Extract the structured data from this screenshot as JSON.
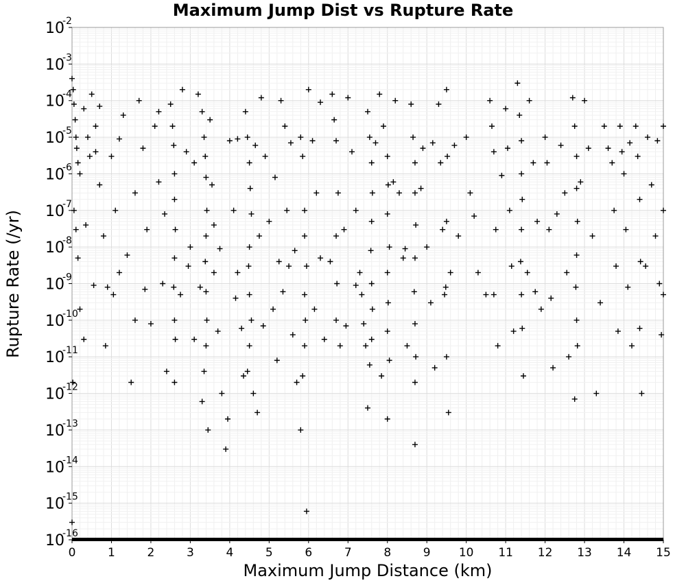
{
  "chart_data": {
    "type": "scatter",
    "title": "Maximum Jump Dist vs Rupture Rate",
    "xlabel": "Maximum Jump Distance (km)",
    "ylabel": "Rupture Rate (/yr)",
    "xlim": [
      0,
      15
    ],
    "ylim": [
      1e-16,
      0.01
    ],
    "yscale": "log",
    "grid": true,
    "marker": "plus",
    "marker_color": "#000000",
    "x_ticks": [
      "0",
      "1",
      "2",
      "3",
      "4",
      "5",
      "6",
      "7",
      "8",
      "9",
      "10",
      "11",
      "12",
      "13",
      "14",
      "15"
    ],
    "y_ticks": [
      {
        "base": "10",
        "exp": "-2"
      },
      {
        "base": "10",
        "exp": "-3"
      },
      {
        "base": "10",
        "exp": "-4"
      },
      {
        "base": "10",
        "exp": "-5"
      },
      {
        "base": "10",
        "exp": "-6"
      },
      {
        "base": "10",
        "exp": "-7"
      },
      {
        "base": "10",
        "exp": "-8"
      },
      {
        "base": "10",
        "exp": "-9"
      },
      {
        "base": "10",
        "exp": "-10"
      },
      {
        "base": "10",
        "exp": "-11"
      },
      {
        "base": "10",
        "exp": "-12"
      },
      {
        "base": "10",
        "exp": "-13"
      },
      {
        "base": "10",
        "exp": "-14"
      },
      {
        "base": "10",
        "exp": "-15"
      },
      {
        "base": "10",
        "exp": "-16"
      }
    ],
    "points": [
      [
        0.0,
        0.0004
      ],
      [
        0.03,
        0.0002
      ],
      [
        0.05,
        8e-05
      ],
      [
        0.08,
        3e-05
      ],
      [
        0.1,
        1e-05
      ],
      [
        0.12,
        5e-06
      ],
      [
        0.15,
        2e-06
      ],
      [
        0.2,
        1e-06
      ],
      [
        0.05,
        1e-07
      ],
      [
        0.1,
        3e-08
      ],
      [
        0.15,
        5e-09
      ],
      [
        0.2,
        2e-10
      ],
      [
        0.3,
        3e-11
      ],
      [
        0.02,
        2e-12
      ],
      [
        0.0,
        3e-16
      ],
      [
        0.3,
        6e-05
      ],
      [
        0.4,
        1e-05
      ],
      [
        0.45,
        3e-06
      ],
      [
        0.5,
        0.00015
      ],
      [
        0.6,
        2e-05
      ],
      [
        0.7,
        5e-07
      ],
      [
        0.8,
        2e-08
      ],
      [
        0.9,
        8e-10
      ],
      [
        1.0,
        3e-06
      ],
      [
        1.1,
        1e-07
      ],
      [
        1.2,
        2e-09
      ],
      [
        1.3,
        4e-05
      ],
      [
        1.5,
        2e-12
      ],
      [
        1.6,
        1e-10
      ],
      [
        1.7,
        0.0001
      ],
      [
        1.8,
        5e-06
      ],
      [
        1.9,
        3e-08
      ],
      [
        2.0,
        8e-11
      ],
      [
        2.1,
        2e-05
      ],
      [
        2.2,
        6e-07
      ],
      [
        2.3,
        1e-09
      ],
      [
        2.4,
        4e-12
      ],
      [
        2.5,
        8e-05
      ],
      [
        2.55,
        2e-05
      ],
      [
        2.58,
        6e-06
      ],
      [
        2.6,
        1e-06
      ],
      [
        2.6,
        2e-07
      ],
      [
        2.62,
        3e-08
      ],
      [
        2.6,
        5e-09
      ],
      [
        2.58,
        8e-10
      ],
      [
        2.6,
        1e-10
      ],
      [
        2.62,
        3e-11
      ],
      [
        2.6,
        2e-12
      ],
      [
        2.8,
        0.0002
      ],
      [
        2.9,
        4e-06
      ],
      [
        3.0,
        1e-08
      ],
      [
        3.1,
        3e-11
      ],
      [
        3.2,
        0.00015
      ],
      [
        3.3,
        5e-05
      ],
      [
        3.35,
        1e-05
      ],
      [
        3.38,
        3e-06
      ],
      [
        3.4,
        8e-07
      ],
      [
        3.42,
        1e-07
      ],
      [
        3.4,
        2e-08
      ],
      [
        3.38,
        4e-09
      ],
      [
        3.4,
        6e-10
      ],
      [
        3.42,
        1e-10
      ],
      [
        3.4,
        2e-11
      ],
      [
        3.35,
        4e-12
      ],
      [
        3.3,
        6e-13
      ],
      [
        3.45,
        1e-13
      ],
      [
        3.5,
        3e-05
      ],
      [
        3.55,
        5e-07
      ],
      [
        3.6,
        2e-09
      ],
      [
        3.7,
        5e-11
      ],
      [
        3.8,
        1e-12
      ],
      [
        3.9,
        3e-14
      ],
      [
        3.95,
        2e-13
      ],
      [
        4.0,
        8e-06
      ],
      [
        4.1,
        1e-07
      ],
      [
        4.2,
        2e-09
      ],
      [
        4.3,
        6e-11
      ],
      [
        4.35,
        3e-12
      ],
      [
        4.4,
        5e-05
      ],
      [
        4.45,
        1e-05
      ],
      [
        4.5,
        2e-06
      ],
      [
        4.52,
        4e-07
      ],
      [
        4.55,
        8e-08
      ],
      [
        4.5,
        1e-08
      ],
      [
        4.48,
        3e-09
      ],
      [
        4.5,
        5e-10
      ],
      [
        4.55,
        1e-10
      ],
      [
        4.5,
        2e-11
      ],
      [
        4.45,
        4e-12
      ],
      [
        4.6,
        1e-12
      ],
      [
        4.7,
        3e-13
      ],
      [
        4.8,
        0.00012
      ],
      [
        4.9,
        3e-06
      ],
      [
        5.0,
        5e-08
      ],
      [
        5.1,
        2e-10
      ],
      [
        5.2,
        8e-12
      ],
      [
        5.3,
        0.0001
      ],
      [
        5.4,
        2e-05
      ],
      [
        5.45,
        1e-07
      ],
      [
        5.5,
        3e-09
      ],
      [
        5.6,
        4e-11
      ],
      [
        5.7,
        2e-12
      ],
      [
        5.8,
        1e-05
      ],
      [
        5.85,
        3e-06
      ],
      [
        5.9,
        1e-07
      ],
      [
        5.9,
        2e-08
      ],
      [
        5.95,
        3e-09
      ],
      [
        5.9,
        5e-10
      ],
      [
        5.92,
        1e-10
      ],
      [
        5.9,
        2e-11
      ],
      [
        5.85,
        3e-12
      ],
      [
        5.95,
        6e-16
      ],
      [
        5.8,
        1e-13
      ],
      [
        6.0,
        0.0002
      ],
      [
        6.1,
        8e-06
      ],
      [
        6.2,
        3e-07
      ],
      [
        6.3,
        5e-09
      ],
      [
        6.4,
        3e-11
      ],
      [
        6.6,
        0.00015
      ],
      [
        6.65,
        3e-05
      ],
      [
        6.7,
        8e-06
      ],
      [
        6.75,
        3e-07
      ],
      [
        6.7,
        2e-08
      ],
      [
        6.72,
        1e-09
      ],
      [
        6.7,
        1e-10
      ],
      [
        6.8,
        2e-11
      ],
      [
        7.0,
        0.00012
      ],
      [
        7.1,
        4e-06
      ],
      [
        7.2,
        1e-07
      ],
      [
        7.3,
        2e-09
      ],
      [
        7.4,
        8e-11
      ],
      [
        7.45,
        2e-11
      ],
      [
        7.5,
        5e-05
      ],
      [
        7.55,
        1e-05
      ],
      [
        7.6,
        2e-06
      ],
      [
        7.62,
        3e-07
      ],
      [
        7.6,
        5e-08
      ],
      [
        7.58,
        8e-09
      ],
      [
        7.6,
        1e-09
      ],
      [
        7.62,
        2e-10
      ],
      [
        7.6,
        3e-11
      ],
      [
        7.55,
        6e-12
      ],
      [
        7.5,
        4e-13
      ],
      [
        7.8,
        0.00015
      ],
      [
        7.9,
        2e-05
      ],
      [
        8.0,
        3e-06
      ],
      [
        8.02,
        5e-07
      ],
      [
        8.0,
        8e-08
      ],
      [
        8.05,
        1e-08
      ],
      [
        8.0,
        2e-09
      ],
      [
        8.02,
        3e-10
      ],
      [
        8.0,
        5e-11
      ],
      [
        8.05,
        8e-12
      ],
      [
        8.0,
        2e-13
      ],
      [
        8.2,
        0.0001
      ],
      [
        8.3,
        3e-07
      ],
      [
        8.4,
        5e-09
      ],
      [
        8.5,
        2e-11
      ],
      [
        8.6,
        8e-05
      ],
      [
        8.65,
        1e-05
      ],
      [
        8.7,
        2e-06
      ],
      [
        8.7,
        3e-07
      ],
      [
        8.72,
        4e-08
      ],
      [
        8.7,
        5e-09
      ],
      [
        8.68,
        6e-10
      ],
      [
        8.7,
        8e-11
      ],
      [
        8.72,
        1e-11
      ],
      [
        8.7,
        2e-12
      ],
      [
        8.7,
        4e-14
      ],
      [
        8.9,
        5e-06
      ],
      [
        9.0,
        1e-08
      ],
      [
        9.1,
        3e-10
      ],
      [
        9.2,
        5e-12
      ],
      [
        9.3,
        8e-05
      ],
      [
        9.35,
        2e-06
      ],
      [
        9.4,
        3e-08
      ],
      [
        9.45,
        5e-10
      ],
      [
        9.5,
        0.0002
      ],
      [
        9.52,
        3e-06
      ],
      [
        9.5,
        5e-08
      ],
      [
        9.48,
        8e-10
      ],
      [
        9.5,
        1e-11
      ],
      [
        9.55,
        3e-13
      ],
      [
        9.7,
        6e-06
      ],
      [
        9.8,
        2e-08
      ],
      [
        10.0,
        1e-05
      ],
      [
        10.1,
        3e-07
      ],
      [
        10.3,
        2e-09
      ],
      [
        10.6,
        0.0001
      ],
      [
        10.65,
        2e-05
      ],
      [
        10.7,
        4e-06
      ],
      [
        10.75,
        3e-08
      ],
      [
        10.7,
        5e-10
      ],
      [
        10.8,
        2e-11
      ],
      [
        11.0,
        6e-05
      ],
      [
        11.05,
        5e-06
      ],
      [
        11.1,
        1e-07
      ],
      [
        11.15,
        3e-09
      ],
      [
        11.2,
        5e-11
      ],
      [
        11.3,
        0.0003
      ],
      [
        11.35,
        4e-05
      ],
      [
        11.4,
        8e-06
      ],
      [
        11.4,
        1e-06
      ],
      [
        11.42,
        2e-07
      ],
      [
        11.4,
        3e-08
      ],
      [
        11.38,
        4e-09
      ],
      [
        11.4,
        5e-10
      ],
      [
        11.42,
        6e-11
      ],
      [
        11.45,
        3e-12
      ],
      [
        11.6,
        0.0001
      ],
      [
        11.7,
        2e-06
      ],
      [
        11.8,
        5e-08
      ],
      [
        11.9,
        2e-10
      ],
      [
        12.0,
        1e-05
      ],
      [
        12.05,
        2e-06
      ],
      [
        12.1,
        3e-08
      ],
      [
        12.15,
        4e-10
      ],
      [
        12.2,
        5e-12
      ],
      [
        12.4,
        6e-06
      ],
      [
        12.5,
        3e-07
      ],
      [
        12.55,
        2e-09
      ],
      [
        12.6,
        1e-11
      ],
      [
        12.7,
        0.00012
      ],
      [
        12.75,
        2e-05
      ],
      [
        12.8,
        3e-06
      ],
      [
        12.8,
        4e-07
      ],
      [
        12.82,
        5e-08
      ],
      [
        12.8,
        6e-09
      ],
      [
        12.78,
        8e-10
      ],
      [
        12.8,
        1e-10
      ],
      [
        12.82,
        2e-11
      ],
      [
        12.75,
        7e-13
      ],
      [
        13.0,
        0.0001
      ],
      [
        13.1,
        5e-06
      ],
      [
        13.2,
        2e-08
      ],
      [
        13.3,
        1e-12
      ],
      [
        13.5,
        2e-05
      ],
      [
        13.6,
        5e-06
      ],
      [
        13.7,
        2e-06
      ],
      [
        13.75,
        1e-07
      ],
      [
        13.8,
        3e-09
      ],
      [
        13.85,
        5e-11
      ],
      [
        13.9,
        2e-05
      ],
      [
        13.95,
        4e-06
      ],
      [
        14.0,
        1e-06
      ],
      [
        14.05,
        3e-08
      ],
      [
        14.1,
        8e-10
      ],
      [
        14.2,
        2e-11
      ],
      [
        14.3,
        2e-05
      ],
      [
        14.35,
        3e-06
      ],
      [
        14.4,
        2e-07
      ],
      [
        14.42,
        4e-09
      ],
      [
        14.4,
        6e-11
      ],
      [
        14.45,
        1e-12
      ],
      [
        14.6,
        1e-05
      ],
      [
        14.7,
        5e-07
      ],
      [
        14.8,
        2e-08
      ],
      [
        14.9,
        1e-09
      ],
      [
        14.95,
        4e-11
      ],
      [
        15.0,
        2e-05
      ],
      [
        15.0,
        1e-07
      ],
      [
        15.0,
        5e-10
      ],
      [
        0.6,
        4e-06
      ],
      [
        0.7,
        7e-05
      ],
      [
        1.2,
        9e-06
      ],
      [
        1.4,
        6e-09
      ],
      [
        2.2,
        5e-05
      ],
      [
        3.1,
        2e-06
      ],
      [
        3.6,
        4e-08
      ],
      [
        4.2,
        9e-06
      ],
      [
        4.65,
        6e-06
      ],
      [
        4.75,
        2e-08
      ],
      [
        5.15,
        8e-07
      ],
      [
        5.25,
        4e-09
      ],
      [
        5.55,
        7e-06
      ],
      [
        6.3,
        9e-05
      ],
      [
        6.9,
        3e-08
      ],
      [
        7.2,
        9e-10
      ],
      [
        7.7,
        7e-06
      ],
      [
        8.15,
        6e-07
      ],
      [
        8.45,
        9e-09
      ],
      [
        8.85,
        4e-07
      ],
      [
        9.15,
        7e-06
      ],
      [
        9.6,
        2e-09
      ],
      [
        10.2,
        7e-08
      ],
      [
        10.5,
        5e-10
      ],
      [
        10.9,
        9e-07
      ],
      [
        11.55,
        2e-09
      ],
      [
        11.75,
        6e-10
      ],
      [
        12.3,
        8e-08
      ],
      [
        12.9,
        6e-07
      ],
      [
        13.4,
        3e-10
      ],
      [
        14.15,
        7e-06
      ],
      [
        14.55,
        3e-09
      ],
      [
        14.85,
        8e-06
      ],
      [
        0.35,
        4e-08
      ],
      [
        0.55,
        9e-10
      ],
      [
        0.85,
        2e-11
      ],
      [
        1.05,
        5e-10
      ],
      [
        1.6,
        3e-07
      ],
      [
        1.85,
        7e-10
      ],
      [
        2.35,
        8e-08
      ],
      [
        2.75,
        5e-10
      ],
      [
        2.95,
        3e-09
      ],
      [
        3.25,
        8e-10
      ],
      [
        3.75,
        9e-09
      ],
      [
        4.15,
        4e-10
      ],
      [
        4.85,
        7e-11
      ],
      [
        5.35,
        6e-10
      ],
      [
        5.65,
        8e-09
      ],
      [
        6.15,
        2e-10
      ],
      [
        6.55,
        4e-09
      ],
      [
        6.95,
        7e-11
      ],
      [
        7.35,
        5e-10
      ],
      [
        7.85,
        3e-12
      ]
    ]
  }
}
